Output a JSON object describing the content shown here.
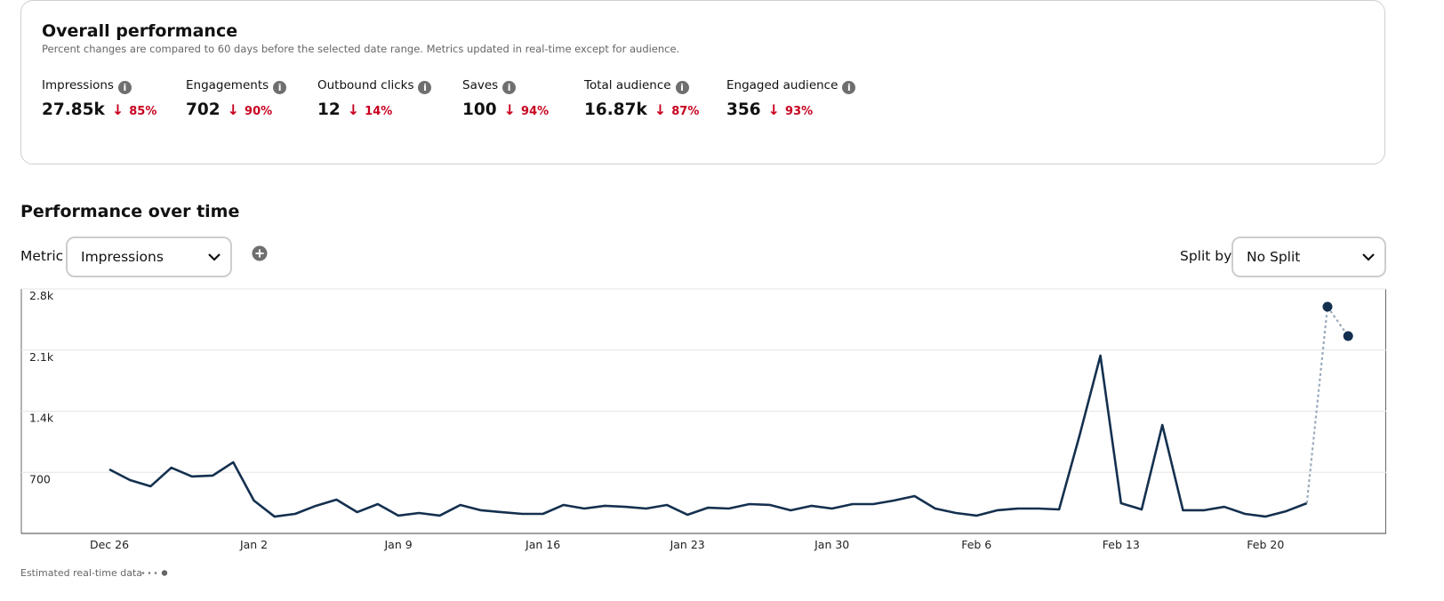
{
  "overview": {
    "title": "Overall performance",
    "subtitle": "Percent changes are compared to 60 days before the selected date range. Metrics updated in real-time except for audience.",
    "metrics": [
      {
        "label": "Impressions",
        "value": "27.85k",
        "change": "85%"
      },
      {
        "label": "Engagements",
        "value": "702",
        "change": "90%"
      },
      {
        "label": "Outbound clicks",
        "value": "12",
        "change": "14%"
      },
      {
        "label": "Saves",
        "value": "100",
        "change": "94%"
      },
      {
        "label": "Total audience",
        "value": "16.87k",
        "change": "87%"
      },
      {
        "label": "Engaged audience",
        "value": "356",
        "change": "93%"
      }
    ]
  },
  "section_title": "Performance over time",
  "controls": {
    "metric_label": "Metric",
    "metric_value": "Impressions",
    "split_label": "Split by",
    "split_value": "No Split"
  },
  "chart_data": {
    "type": "line",
    "categories": [
      "Dec 26",
      null,
      null,
      null,
      null,
      null,
      null,
      "Jan 2",
      null,
      null,
      null,
      null,
      null,
      null,
      "Jan 9",
      null,
      null,
      null,
      null,
      null,
      null,
      "Jan 16",
      null,
      null,
      null,
      null,
      null,
      null,
      "Jan 23",
      null,
      null,
      null,
      null,
      null,
      null,
      "Jan 30",
      null,
      null,
      null,
      null,
      null,
      null,
      "Feb 6",
      null,
      null,
      null,
      null,
      null,
      null,
      "Feb 13",
      null,
      null,
      null,
      null,
      null,
      null,
      "Feb 20",
      null,
      null,
      null,
      null
    ],
    "series": [
      {
        "color": "#14304f",
        "values": [
          733,
          611,
          540,
          753,
          652,
          662,
          815,
          377,
          193,
          224,
          316,
          387,
          244,
          336,
          204,
          234,
          204,
          326,
          265,
          244,
          224,
          224,
          326,
          285,
          316,
          305,
          285,
          326,
          214,
          295,
          285,
          336,
          326,
          265,
          316,
          285,
          336,
          336,
          377,
          428,
          285,
          234,
          204,
          265,
          285,
          285,
          275,
          1130,
          2036,
          346,
          275,
          1242,
          265,
          265,
          305,
          224,
          193,
          255,
          346,
          null,
          null
        ]
      },
      {
        "name": "Estimated real-time data",
        "color": "#9aabbb",
        "values": [
          null,
          null,
          null,
          null,
          null,
          null,
          null,
          null,
          null,
          null,
          null,
          null,
          null,
          null,
          null,
          null,
          null,
          null,
          null,
          null,
          null,
          null,
          null,
          null,
          null,
          null,
          null,
          null,
          null,
          null,
          null,
          null,
          null,
          null,
          null,
          null,
          null,
          null,
          null,
          null,
          null,
          null,
          null,
          null,
          null,
          null,
          null,
          null,
          null,
          null,
          null,
          null,
          null,
          null,
          null,
          null,
          null,
          null,
          null,
          2596,
          2260
        ]
      }
    ],
    "ylim": [
      0,
      2800
    ],
    "yticks": [
      700,
      {
        "value": 1400,
        "label": "1.4k"
      },
      {
        "value": 2100,
        "label": "2.1k"
      },
      {
        "value": 2800,
        "label": "2.8k"
      }
    ],
    "grid": true
  }
}
